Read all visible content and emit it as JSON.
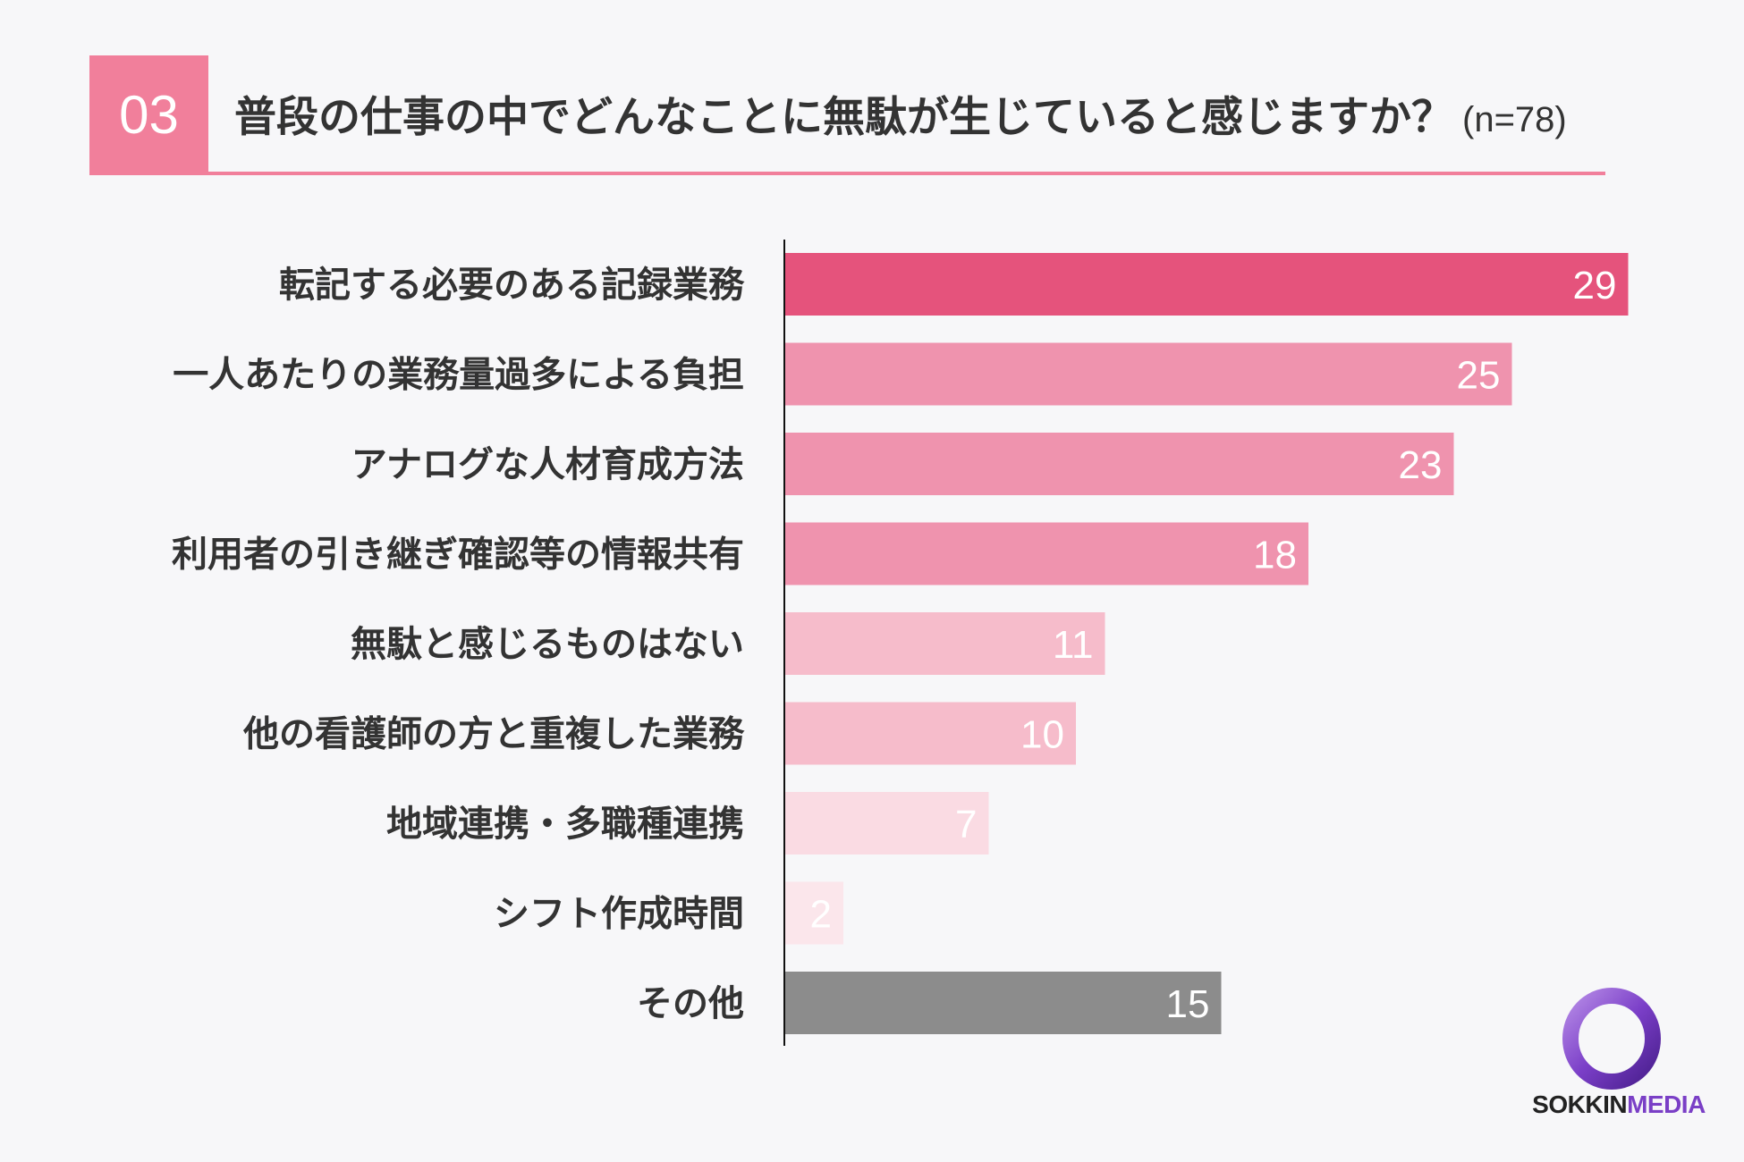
{
  "header": {
    "badge": "03",
    "question": "普段の仕事の中でどんなことに無駄が生じていると感じますか？",
    "sample": "(n=78)"
  },
  "colors": {
    "accent": "#f17f9b",
    "bar_dark": "#e5537c",
    "bar_mid": "#ef93ae",
    "bar_light": "#f6bccb",
    "bar_pale": "#fadbe3",
    "bar_palest": "#fbe6eb",
    "bar_other": "#8c8c8c",
    "axis": "#111111"
  },
  "chart_data": {
    "type": "bar",
    "orientation": "horizontal",
    "categories": [
      "転記する必要のある記録業務",
      "一人あたりの業務量過多による負担",
      "アナログな人材育成方法",
      "利用者の引き継ぎ確認等の情報共有",
      "無駄と感じるものはない",
      "他の看護師の方と重複した業務",
      "地域連携・多職種連携",
      "シフト作成時間",
      "その他"
    ],
    "values": [
      29,
      25,
      23,
      18,
      11,
      10,
      7,
      2,
      15
    ],
    "bar_colors": [
      "#e5537c",
      "#ef93ae",
      "#ef93ae",
      "#ef93ae",
      "#f6bccb",
      "#f6bccb",
      "#fadbe3",
      "#fbe6eb",
      "#8c8c8c"
    ],
    "xlim": [
      0,
      30
    ],
    "grid": false,
    "data_labels": true
  },
  "logo": {
    "part1": "SOKKIN",
    "part2": "MEDIA"
  }
}
